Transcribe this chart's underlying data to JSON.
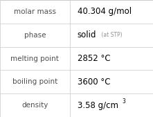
{
  "rows": [
    {
      "label": "molar mass",
      "value": "40.304 g/mol",
      "suffix": null,
      "superscript": null
    },
    {
      "label": "phase",
      "value": "solid",
      "suffix": " (at STP)",
      "superscript": null
    },
    {
      "label": "melting point",
      "value": "2852 °C",
      "suffix": null,
      "superscript": null
    },
    {
      "label": "boiling point",
      "value": "3600 °C",
      "suffix": null,
      "superscript": null
    },
    {
      "label": "density",
      "value": "3.58 g/cm",
      "suffix": null,
      "superscript": "3"
    }
  ],
  "bg_color": "#ffffff",
  "border_color": "#c8c8c8",
  "label_color": "#505050",
  "value_color": "#000000",
  "suffix_color": "#909090",
  "label_fontsize": 7.5,
  "value_fontsize": 8.5,
  "suffix_fontsize": 5.5,
  "sup_fontsize": 5.5,
  "col_split": 0.455
}
